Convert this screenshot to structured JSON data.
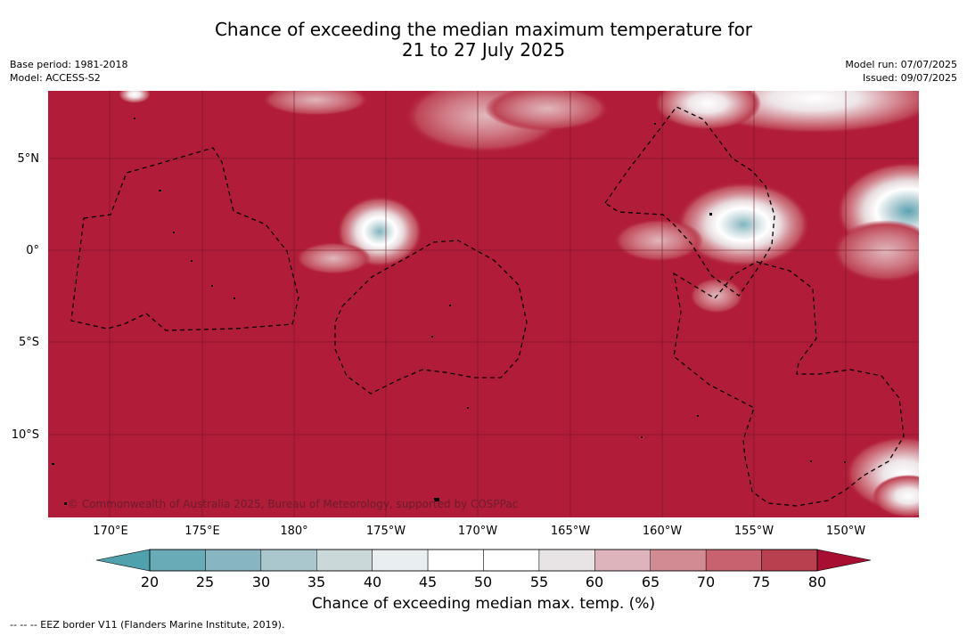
{
  "title": {
    "line1": "Chance of exceeding the median maximum temperature for",
    "line2": "21 to 27 July 2025"
  },
  "meta_left": {
    "base_period": "Base period: 1981-2018",
    "model": "Model: ACCESS-S2"
  },
  "meta_right": {
    "model_run": "Model run: 07/07/2025",
    "issued": "Issued: 09/07/2025"
  },
  "map": {
    "latitude_labels": [
      "5°N",
      "0°",
      "5°S",
      "10°S"
    ],
    "longitude_labels": [
      "170°E",
      "175°E",
      "180°",
      "175°W",
      "170°W",
      "165°W",
      "160°W",
      "155°W",
      "150°W"
    ],
    "copyright": "© Commonwealth of Australia 2025, Bureau of Meteorology, supported by COSPPac",
    "background_color": "#b11d39"
  },
  "colorbar": {
    "ticks": [
      "20",
      "25",
      "30",
      "35",
      "40",
      "45",
      "50",
      "55",
      "60",
      "65",
      "70",
      "75",
      "80"
    ],
    "colors": [
      "#6aabb8",
      "#88b5c2",
      "#a9c7cc",
      "#cbd8da",
      "#e9eef1",
      "#ffffff",
      "#ffffff",
      "#e8e4e5",
      "#ddb4bb",
      "#d28a93",
      "#c8626f",
      "#b9404f"
    ],
    "under_color": "#4fa1ae",
    "over_color": "#a80e32",
    "label": "Chance of exceeding median max. temp. (%)"
  },
  "legend_note": "--  --  -- EEZ border V11 (Flanders Marine Institute, 2019)."
}
